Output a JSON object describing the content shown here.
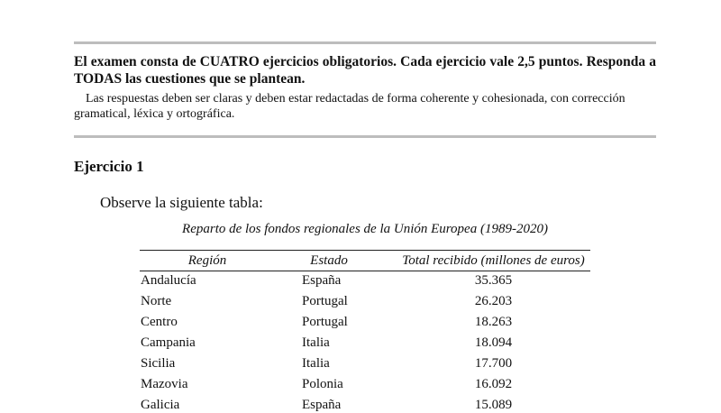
{
  "instructions": {
    "bold": "El examen consta de CUATRO ejercicios obligatorios. Cada ejercicio vale 2,5 puntos. Responda a TODAS las cuestiones que se plantean.",
    "note": "Las respuestas deben ser claras y deben estar redactadas de forma coherente y cohesionada, con corrección gramatical, léxica y ortográfica."
  },
  "exercise": {
    "title": "Ejercicio 1",
    "prompt": "Observe la siguiente tabla:"
  },
  "table": {
    "caption": "Reparto de los fondos regionales de la Unión Europea (1989-2020)",
    "header": [
      "Región",
      "Estado",
      "Total recibido (millones de euros)"
    ],
    "rows": [
      [
        "Andalucía",
        "España",
        "35.365"
      ],
      [
        "Norte",
        "Portugal",
        "26.203"
      ],
      [
        "Centro",
        "Portugal",
        "18.263"
      ],
      [
        "Campania",
        "Italia",
        "18.094"
      ],
      [
        "Sicilia",
        "Italia",
        "17.700"
      ],
      [
        "Mazovia",
        "Polonia",
        "16.092"
      ],
      [
        "Galicia",
        "España",
        "15.089"
      ]
    ]
  }
}
